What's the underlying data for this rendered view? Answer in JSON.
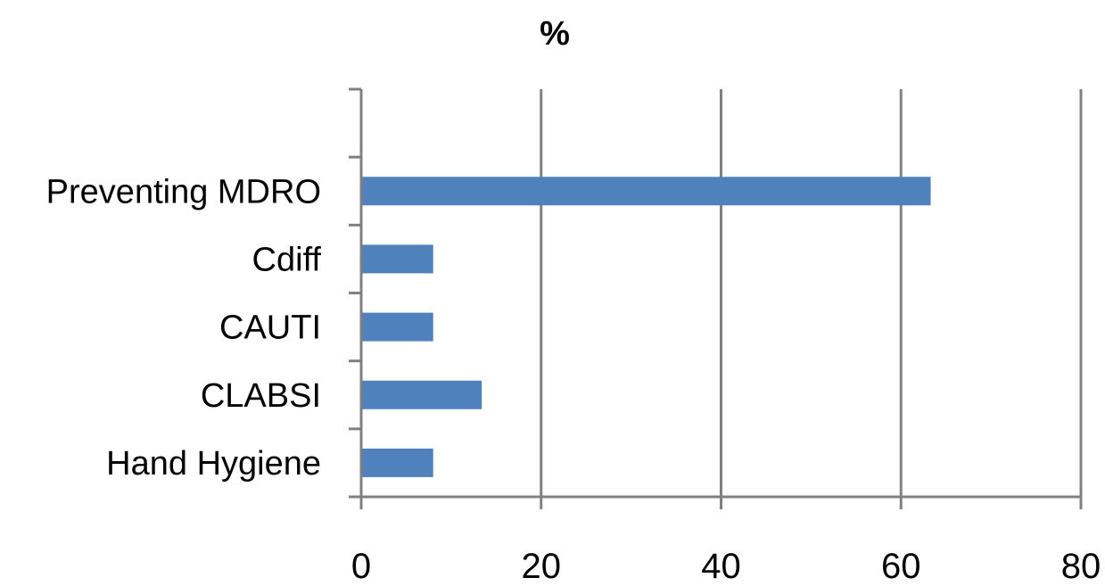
{
  "chart_data": {
    "type": "bar",
    "orientation": "horizontal",
    "title": "%",
    "xlabel": "",
    "ylabel": "",
    "categories": [
      "",
      "Preventing MDRO",
      "Cdiff",
      "CAUTI",
      "CLABSI",
      "Hand Hygiene"
    ],
    "values": [
      null,
      63.3,
      8.0,
      8.0,
      13.4,
      8.0
    ],
    "xlim": [
      0,
      80
    ],
    "xticks": [
      "0",
      "20",
      "40",
      "60",
      "80"
    ],
    "grid": true,
    "legend": "none",
    "bar_color": "#4f81bd",
    "grid_color": "#808080"
  }
}
